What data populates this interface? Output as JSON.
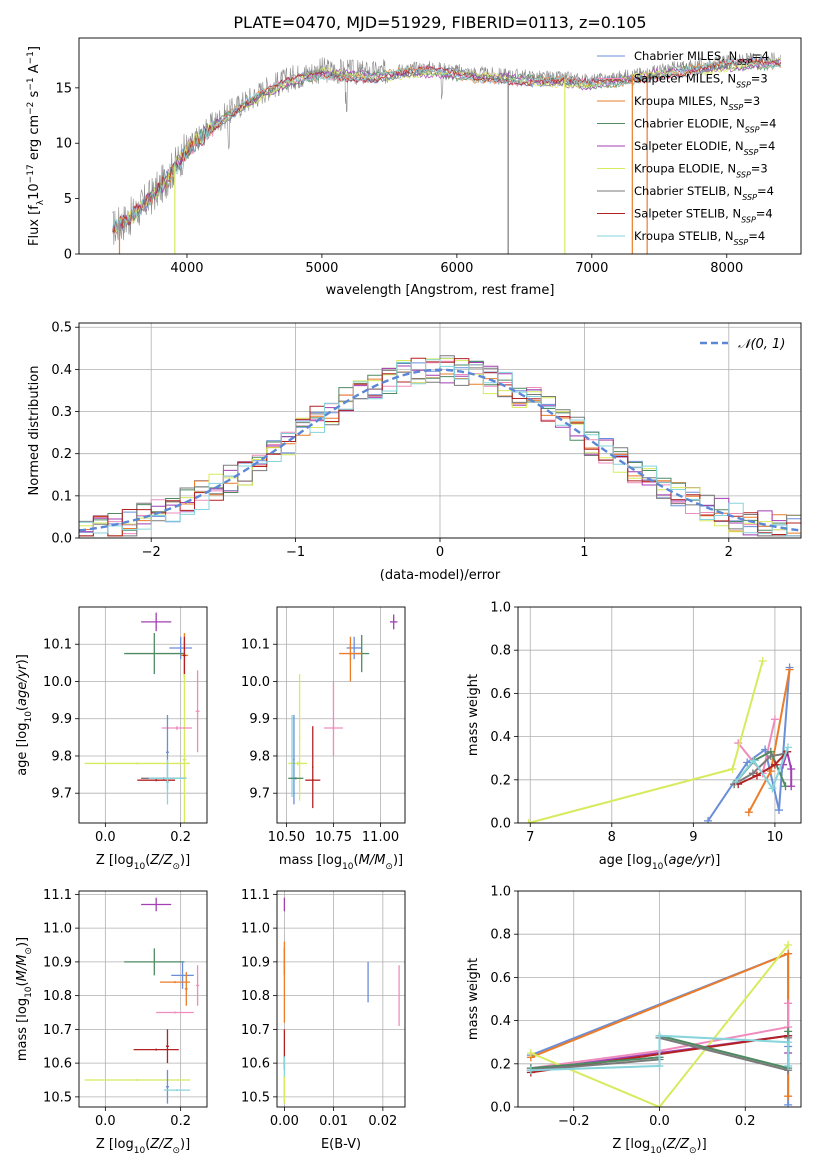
{
  "figure_title": "PLATE=0470, MJD=51929, FIBERID=0113, z=0.105",
  "colors": {
    "MILES": [
      "#6a8ed9",
      "#ef8cbd",
      "#ea7c2a"
    ],
    "ELODIE": [
      "#4f8a63",
      "#a23fb3",
      "#d8ea5e"
    ],
    "STELIB": [
      "#7a7a7a",
      "#b22222",
      "#86d4dc"
    ],
    "normal": "#5b87d6",
    "grid": "#b0b0b0"
  },
  "chart_data": [
    {
      "id": "spectrum",
      "type": "line",
      "title": "PLATE=0470, MJD=51929, FIBERID=0113, z=0.105",
      "xlabel": "wavelength [Angstrom, rest frame]",
      "ylabel": "Flux [f_λ 10^-17 erg cm^-2 s^-1 A^-1]",
      "xlim": [
        3200,
        8550
      ],
      "ylim": [
        0,
        19.5
      ],
      "xticks": [
        4000,
        5000,
        6000,
        7000,
        8000
      ],
      "yticks": [
        0,
        5,
        10,
        15
      ],
      "grid": false,
      "legend_position": "top-right",
      "continuum_x": [
        3450,
        3600,
        3800,
        4000,
        4200,
        4400,
        4600,
        4800,
        5000,
        5200,
        5400,
        5600,
        5800,
        6000,
        6200,
        6400,
        6600,
        6800,
        7000,
        7200,
        7400,
        7600,
        7800,
        8000,
        8200,
        8400
      ],
      "continuum_y": [
        2.3,
        3.5,
        6,
        9.5,
        11.8,
        13.5,
        15,
        16,
        16.6,
        16.4,
        16.3,
        16.6,
        16.8,
        16.5,
        16.2,
        16.1,
        15.9,
        15.8,
        15.6,
        15.9,
        16.3,
        16.7,
        17,
        17.3,
        17.5,
        17.6
      ],
      "legend": [
        {
          "label": "Chabrier MILES, N",
          "sub": "SSP",
          "suffix": "=4"
        },
        {
          "label": "Salpeter MILES, N",
          "sub": "SSP",
          "suffix": "=3"
        },
        {
          "label": "Kroupa MILES, N",
          "sub": "SSP",
          "suffix": "=3"
        },
        {
          "label": "Chabrier ELODIE, N",
          "sub": "SSP",
          "suffix": "=4"
        },
        {
          "label": "Salpeter ELODIE, N",
          "sub": "SSP",
          "suffix": "=4"
        },
        {
          "label": "Kroupa ELODIE, N",
          "sub": "SSP",
          "suffix": "=3"
        },
        {
          "label": "Chabrier STELIB, N",
          "sub": "SSP",
          "suffix": "=4"
        },
        {
          "label": "Salpeter STELIB, N",
          "sub": "SSP",
          "suffix": "=4"
        },
        {
          "label": "Kroupa STELIB, N",
          "sub": "SSP",
          "suffix": "=4"
        }
      ]
    },
    {
      "id": "residuals",
      "type": "histogram",
      "xlabel": "(data-model)/error",
      "ylabel": "Normed distribution",
      "xlim": [
        -2.5,
        2.5
      ],
      "ylim": [
        0,
        0.51
      ],
      "xticks": [
        -2,
        -1,
        0,
        1,
        2
      ],
      "yticks": [
        0.0,
        0.1,
        0.2,
        0.3,
        0.4,
        0.5
      ],
      "grid": true,
      "legend_position": "top-right",
      "legend_label": "𝒩(0, 1)",
      "bin_width": 0.1
    },
    {
      "id": "Z_age",
      "type": "errorbar",
      "xlabel": "Z [log10(Z/Z⊙)]",
      "ylabel": "age [log10(age/yr)]",
      "xlim": [
        -0.07,
        0.27
      ],
      "ylim": [
        9.62,
        10.2
      ],
      "xticks": [
        0.0,
        0.2
      ],
      "yticks": [
        9.7,
        9.8,
        9.9,
        10.0,
        10.1
      ],
      "grid": true,
      "points": [
        {
          "x": 0.135,
          "y": 10.16,
          "xerr": 0.04,
          "yerr": 0.025,
          "c": "#a23fb3"
        },
        {
          "x": 0.2,
          "y": 10.09,
          "xerr": 0.03,
          "yerr": 0.03,
          "c": "#6a8ed9"
        },
        {
          "x": 0.13,
          "y": 10.075,
          "xerr": 0.08,
          "yerr": 0.055,
          "c": "#4f8a63"
        },
        {
          "x": 0.21,
          "y": 10.07,
          "xerr": 0.01,
          "yerr": 0.06,
          "c": "#ea7c2a"
        },
        {
          "x": 0.21,
          "y": 10.07,
          "xerr": 0.004,
          "yerr": 0.05,
          "c": "#b22222"
        },
        {
          "x": 0.21,
          "y": 9.79,
          "xerr": 0.005,
          "yerr": 0.23,
          "c": "#d8ea5e"
        },
        {
          "x": 0.245,
          "y": 9.92,
          "xerr": 0.005,
          "yerr": 0.11,
          "c": "#ef8cbd"
        },
        {
          "x": 0.19,
          "y": 9.875,
          "xerr": 0.04,
          "yerr": 0.005,
          "c": "#ef8cbd"
        },
        {
          "x": 0.165,
          "y": 9.81,
          "xerr": 0.004,
          "yerr": 0.1,
          "c": "#6a8ed9"
        },
        {
          "x": 0.085,
          "y": 9.78,
          "xerr": 0.14,
          "yerr": 0.003,
          "c": "#d8ea5e"
        },
        {
          "x": 0.155,
          "y": 9.74,
          "xerr": 0.06,
          "yerr": 0.003,
          "c": "#7a7a7a"
        },
        {
          "x": 0.165,
          "y": 9.74,
          "xerr": 0.05,
          "yerr": 0.003,
          "c": "#86d4dc"
        },
        {
          "x": 0.135,
          "y": 9.735,
          "xerr": 0.05,
          "yerr": 0.003,
          "c": "#b22222"
        },
        {
          "x": 0.165,
          "y": 9.73,
          "xerr": 0.004,
          "yerr": 0.06,
          "c": "#86d4dc"
        }
      ]
    },
    {
      "id": "mass_age",
      "type": "errorbar",
      "xlabel": "mass [log10(M/M⊙)]",
      "ylabel": "",
      "xlim": [
        10.45,
        11.13
      ],
      "ylim": [
        9.62,
        10.2
      ],
      "xticks": [
        10.5,
        10.75,
        11.0
      ],
      "yticks": [
        9.7,
        9.8,
        9.9,
        10.0,
        10.1
      ],
      "grid": true,
      "points": [
        {
          "x": 11.07,
          "y": 10.16,
          "xerr": 0.02,
          "yerr": 0.02,
          "c": "#a23fb3"
        },
        {
          "x": 10.86,
          "y": 10.09,
          "xerr": 0.04,
          "yerr": 0.03,
          "c": "#6a8ed9"
        },
        {
          "x": 10.9,
          "y": 10.075,
          "xerr": 0.04,
          "yerr": 0.05,
          "c": "#4f8a63"
        },
        {
          "x": 10.84,
          "y": 10.075,
          "xerr": 0.06,
          "yerr": 0.005,
          "c": "#ea7c2a"
        },
        {
          "x": 10.84,
          "y": 10.06,
          "xerr": 0.004,
          "yerr": 0.06,
          "c": "#ea7c2a"
        },
        {
          "x": 10.75,
          "y": 9.875,
          "xerr": 0.05,
          "yerr": 0.005,
          "c": "#ef8cbd"
        },
        {
          "x": 10.75,
          "y": 9.9,
          "xerr": 0.004,
          "yerr": 0.1,
          "c": "#ef8cbd"
        },
        {
          "x": 10.56,
          "y": 9.78,
          "xerr": 0.05,
          "yerr": 0.005,
          "c": "#d8ea5e"
        },
        {
          "x": 10.57,
          "y": 9.85,
          "xerr": 0.004,
          "yerr": 0.17,
          "c": "#d8ea5e"
        },
        {
          "x": 10.54,
          "y": 9.79,
          "xerr": 0.004,
          "yerr": 0.12,
          "c": "#6a8ed9"
        },
        {
          "x": 10.53,
          "y": 9.8,
          "xerr": 0.004,
          "yerr": 0.11,
          "c": "#86d4dc"
        },
        {
          "x": 10.55,
          "y": 9.74,
          "xerr": 0.04,
          "yerr": 0.003,
          "c": "#4f8a63"
        },
        {
          "x": 10.64,
          "y": 9.735,
          "xerr": 0.04,
          "yerr": 0.003,
          "c": "#b22222"
        },
        {
          "x": 10.64,
          "y": 9.77,
          "xerr": 0.004,
          "yerr": 0.11,
          "c": "#b22222"
        }
      ]
    },
    {
      "id": "age_weight",
      "type": "line",
      "xlabel": "age [log10(age/yr)]",
      "ylabel": "mass weight",
      "xlim": [
        6.85,
        10.32
      ],
      "ylim": [
        0,
        1
      ],
      "xticks": [
        7,
        8,
        9,
        10
      ],
      "yticks": [
        0.0,
        0.2,
        0.4,
        0.6,
        0.8,
        1.0
      ],
      "grid": true,
      "series": [
        {
          "c": "#6a8ed9",
          "x": [
            9.18,
            9.66,
            9.88,
            10.05,
            10.18
          ],
          "y": [
            0.01,
            0.28,
            0.34,
            0.06,
            0.72
          ]
        },
        {
          "c": "#ef8cbd",
          "x": [
            9.55,
            9.85,
            10.0
          ],
          "y": [
            0.37,
            0.23,
            0.48
          ]
        },
        {
          "c": "#ea7c2a",
          "x": [
            9.68,
            9.95,
            10.18
          ],
          "y": [
            0.05,
            0.24,
            0.71
          ]
        },
        {
          "c": "#4f8a63",
          "x": [
            9.5,
            9.75,
            9.95,
            10.13
          ],
          "y": [
            0.18,
            0.29,
            0.33,
            0.17
          ]
        },
        {
          "c": "#a23fb3",
          "x": [
            10.1,
            10.15,
            10.2,
            10.2
          ],
          "y": [
            0.27,
            0.33,
            0.25,
            0.17
          ]
        },
        {
          "c": "#d8ea5e",
          "x": [
            6.98,
            9.48,
            9.85
          ],
          "y": [
            0.0,
            0.25,
            0.75
          ]
        },
        {
          "c": "#7a7a7a",
          "x": [
            9.5,
            9.73,
            9.95,
            10.12
          ],
          "y": [
            0.18,
            0.23,
            0.31,
            0.32
          ]
        },
        {
          "c": "#b22222",
          "x": [
            9.55,
            9.78,
            10.0,
            10.15
          ],
          "y": [
            0.18,
            0.22,
            0.27,
            0.33
          ]
        },
        {
          "c": "#86d4dc",
          "x": [
            9.52,
            9.74,
            9.97,
            10.16
          ],
          "y": [
            0.19,
            0.29,
            0.16,
            0.35
          ]
        }
      ]
    },
    {
      "id": "Z_mass",
      "type": "errorbar",
      "xlabel": "Z [log10(Z/Z⊙)]",
      "ylabel": "mass [log10(M/M⊙)]",
      "xlim": [
        -0.07,
        0.27
      ],
      "ylim": [
        10.47,
        11.11
      ],
      "xticks": [
        0.0,
        0.2
      ],
      "yticks": [
        10.5,
        10.6,
        10.7,
        10.8,
        10.9,
        11.0,
        11.1
      ],
      "grid": true,
      "points": [
        {
          "x": 0.135,
          "y": 11.07,
          "xerr": 0.04,
          "yerr": 0.02,
          "c": "#a23fb3"
        },
        {
          "x": 0.13,
          "y": 10.9,
          "xerr": 0.08,
          "yerr": 0.04,
          "c": "#4f8a63"
        },
        {
          "x": 0.205,
          "y": 10.86,
          "xerr": 0.03,
          "yerr": 0.04,
          "c": "#6a8ed9"
        },
        {
          "x": 0.185,
          "y": 10.84,
          "xerr": 0.04,
          "yerr": 0.003,
          "c": "#ea7c2a"
        },
        {
          "x": 0.215,
          "y": 10.82,
          "xerr": 0.004,
          "yerr": 0.05,
          "c": "#ea7c2a"
        },
        {
          "x": 0.245,
          "y": 10.83,
          "xerr": 0.004,
          "yerr": 0.06,
          "c": "#ef8cbd"
        },
        {
          "x": 0.185,
          "y": 10.75,
          "xerr": 0.05,
          "yerr": 0.003,
          "c": "#ef8cbd"
        },
        {
          "x": 0.135,
          "y": 10.64,
          "xerr": 0.06,
          "yerr": 0.003,
          "c": "#b22222"
        },
        {
          "x": 0.165,
          "y": 10.65,
          "xerr": 0.004,
          "yerr": 0.05,
          "c": "#b22222"
        },
        {
          "x": 0.085,
          "y": 10.55,
          "xerr": 0.14,
          "yerr": 0.003,
          "c": "#d8ea5e"
        },
        {
          "x": 0.165,
          "y": 10.53,
          "xerr": 0.004,
          "yerr": 0.05,
          "c": "#6a8ed9"
        },
        {
          "x": 0.19,
          "y": 10.52,
          "xerr": 0.035,
          "yerr": 0.003,
          "c": "#86d4dc"
        }
      ]
    },
    {
      "id": "ebv_mass",
      "type": "errorbar",
      "xlabel": "E(B-V)",
      "ylabel": "",
      "xlim": [
        -0.0015,
        0.0245
      ],
      "ylim": [
        10.47,
        11.11
      ],
      "xticks": [
        0.0,
        0.01,
        0.02
      ],
      "yticks": [
        10.5,
        10.6,
        10.7,
        10.8,
        10.9,
        11.0,
        11.1
      ],
      "grid": true,
      "points": [
        {
          "x": 0.0,
          "y": 11.07,
          "xerr": 0,
          "yerr": 0.02,
          "c": "#a23fb3"
        },
        {
          "x": 0.0,
          "y": 10.9,
          "xerr": 0,
          "yerr": 0.04,
          "c": "#4f8a63"
        },
        {
          "x": 0.0,
          "y": 10.84,
          "xerr": 0,
          "yerr": 0.12,
          "c": "#ea7c2a"
        },
        {
          "x": 0.0,
          "y": 10.64,
          "xerr": 0,
          "yerr": 0.06,
          "c": "#b22222"
        },
        {
          "x": 0.0,
          "y": 10.55,
          "xerr": 0,
          "yerr": 0.07,
          "c": "#86d4dc"
        },
        {
          "x": 0.0,
          "y": 10.52,
          "xerr": 0,
          "yerr": 0.04,
          "c": "#d8ea5e"
        },
        {
          "x": 0.017,
          "y": 10.84,
          "xerr": 0,
          "yerr": 0.06,
          "c": "#6a8ed9"
        },
        {
          "x": 0.0233,
          "y": 10.8,
          "xerr": 0,
          "yerr": 0.09,
          "c": "#ef8cbd"
        }
      ]
    },
    {
      "id": "Z_weight",
      "type": "line",
      "xlabel": "Z [log10(Z/Z⊙)]",
      "ylabel": "mass weight",
      "xlim": [
        -0.33,
        0.33
      ],
      "ylim": [
        0,
        1
      ],
      "xticks": [
        -0.2,
        0.0,
        0.2
      ],
      "yticks": [
        0.0,
        0.2,
        0.4,
        0.6,
        0.8,
        1.0
      ],
      "grid": true,
      "series": [
        {
          "c": "#6a8ed9",
          "x": [
            -0.3,
            0.3,
            0.3,
            0.3
          ],
          "y": [
            0.24,
            0.71,
            0.28,
            0.01
          ]
        },
        {
          "c": "#ea7c2a",
          "x": [
            -0.3,
            0.3,
            0.3
          ],
          "y": [
            0.23,
            0.71,
            0.05
          ]
        },
        {
          "c": "#ef8cbd",
          "x": [
            -0.3,
            0.0,
            0.3,
            0.3
          ],
          "y": [
            0.18,
            0.26,
            0.37,
            0.48
          ]
        },
        {
          "c": "#d8ea5e",
          "x": [
            -0.3,
            0.0,
            0.3
          ],
          "y": [
            0.25,
            0.0,
            0.75
          ]
        },
        {
          "c": "#a23fb3",
          "x": [
            -0.3,
            0.3,
            0.3
          ],
          "y": [
            0.17,
            0.33,
            0.25
          ]
        },
        {
          "c": "#b22222",
          "x": [
            -0.3,
            0.3
          ],
          "y": [
            0.16,
            0.33
          ]
        },
        {
          "c": "#4f8a63",
          "x": [
            -0.3,
            0.0,
            0.0,
            0.3,
            0.3
          ],
          "y": [
            0.18,
            0.23,
            0.33,
            0.18,
            0.35
          ]
        },
        {
          "c": "#7a7a7a",
          "x": [
            -0.3,
            0.0,
            0.0,
            0.3,
            0.3
          ],
          "y": [
            0.17,
            0.22,
            0.32,
            0.17,
            0.32
          ]
        },
        {
          "c": "#86d4dc",
          "x": [
            -0.3,
            0.0,
            0.0,
            0.3,
            0.3
          ],
          "y": [
            0.17,
            0.19,
            0.33,
            0.3,
            0.19
          ]
        }
      ]
    }
  ]
}
